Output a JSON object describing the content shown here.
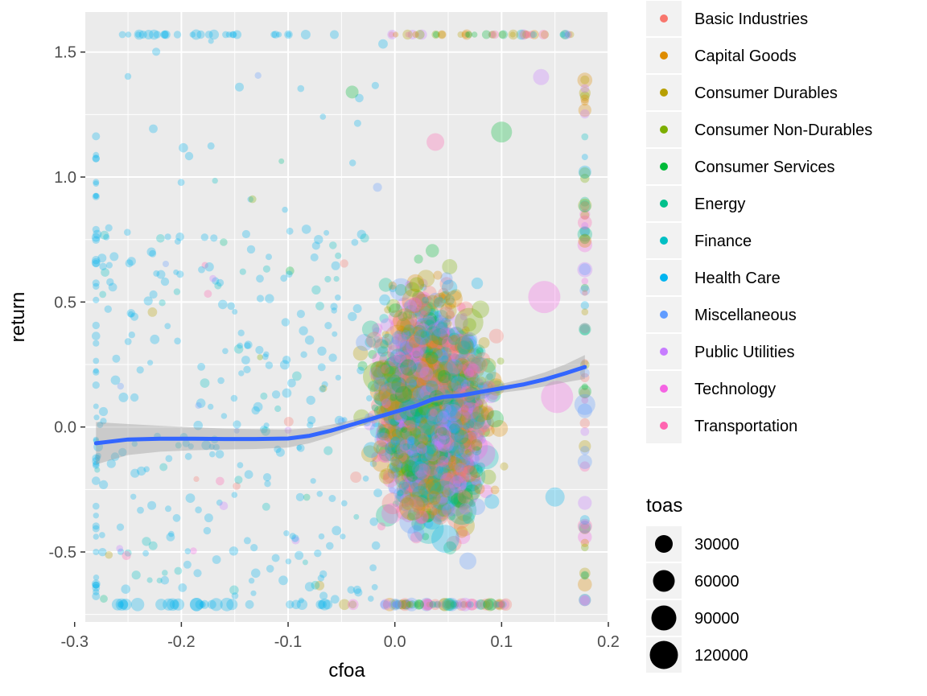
{
  "chart_data": {
    "type": "scatter",
    "xlabel": "cfoa",
    "ylabel": "return",
    "xlim": [
      -0.29,
      0.2
    ],
    "ylim": [
      -0.78,
      1.66
    ],
    "x_ticks": [
      -0.3,
      -0.2,
      -0.1,
      0.0,
      0.1,
      0.2
    ],
    "x_tick_labels": [
      "-0.3",
      "-0.2",
      "-0.1",
      "0.0",
      "0.1",
      "0.2"
    ],
    "y_ticks": [
      -0.5,
      0.0,
      0.5,
      1.0,
      1.5
    ],
    "y_tick_labels": [
      "-0.5",
      "0.0",
      "0.5",
      "1.0",
      "1.5"
    ],
    "grid": true,
    "legend_position": "right",
    "color_legend": {
      "entries": [
        {
          "label": "Basic Industries",
          "color": "#F8766D"
        },
        {
          "label": "Capital Goods",
          "color": "#DE8C00"
        },
        {
          "label": "Consumer Durables",
          "color": "#B79F00"
        },
        {
          "label": "Consumer Non-Durables",
          "color": "#7CAE00"
        },
        {
          "label": "Consumer Services",
          "color": "#00BA38"
        },
        {
          "label": "Energy",
          "color": "#00C08B"
        },
        {
          "label": "Finance",
          "color": "#00BFC4"
        },
        {
          "label": "Health Care",
          "color": "#00B4F0"
        },
        {
          "label": "Miscellaneous",
          "color": "#619CFF"
        },
        {
          "label": "Public Utilities",
          "color": "#C77CFF"
        },
        {
          "label": "Technology",
          "color": "#F564E3"
        },
        {
          "label": "Transportation",
          "color": "#FF64B0"
        }
      ]
    },
    "size_legend": {
      "title": "toas",
      "entries": [
        {
          "label": "30000",
          "value": 30000
        },
        {
          "label": "60000",
          "value": 60000
        },
        {
          "label": "90000",
          "value": 90000
        },
        {
          "label": "120000",
          "value": 120000
        }
      ]
    },
    "smooth_line": {
      "color": "#3366FF",
      "x": [
        -0.28,
        -0.25,
        -0.22,
        -0.19,
        -0.16,
        -0.13,
        -0.1,
        -0.08,
        -0.06,
        -0.04,
        -0.02,
        0.0,
        0.02,
        0.035,
        0.045,
        0.06,
        0.08,
        0.1,
        0.12,
        0.14,
        0.16,
        0.178
      ],
      "y": [
        -0.065,
        -0.05,
        -0.047,
        -0.047,
        -0.048,
        -0.048,
        -0.046,
        -0.035,
        -0.015,
        0.01,
        0.035,
        0.06,
        0.085,
        0.11,
        0.12,
        0.125,
        0.14,
        0.155,
        0.17,
        0.19,
        0.215,
        0.24
      ],
      "ci_halfwidth": [
        0.085,
        0.062,
        0.052,
        0.046,
        0.042,
        0.04,
        0.036,
        0.03,
        0.024,
        0.018,
        0.013,
        0.01,
        0.012,
        0.014,
        0.014,
        0.015,
        0.016,
        0.018,
        0.022,
        0.028,
        0.036,
        0.048
      ]
    }
  }
}
